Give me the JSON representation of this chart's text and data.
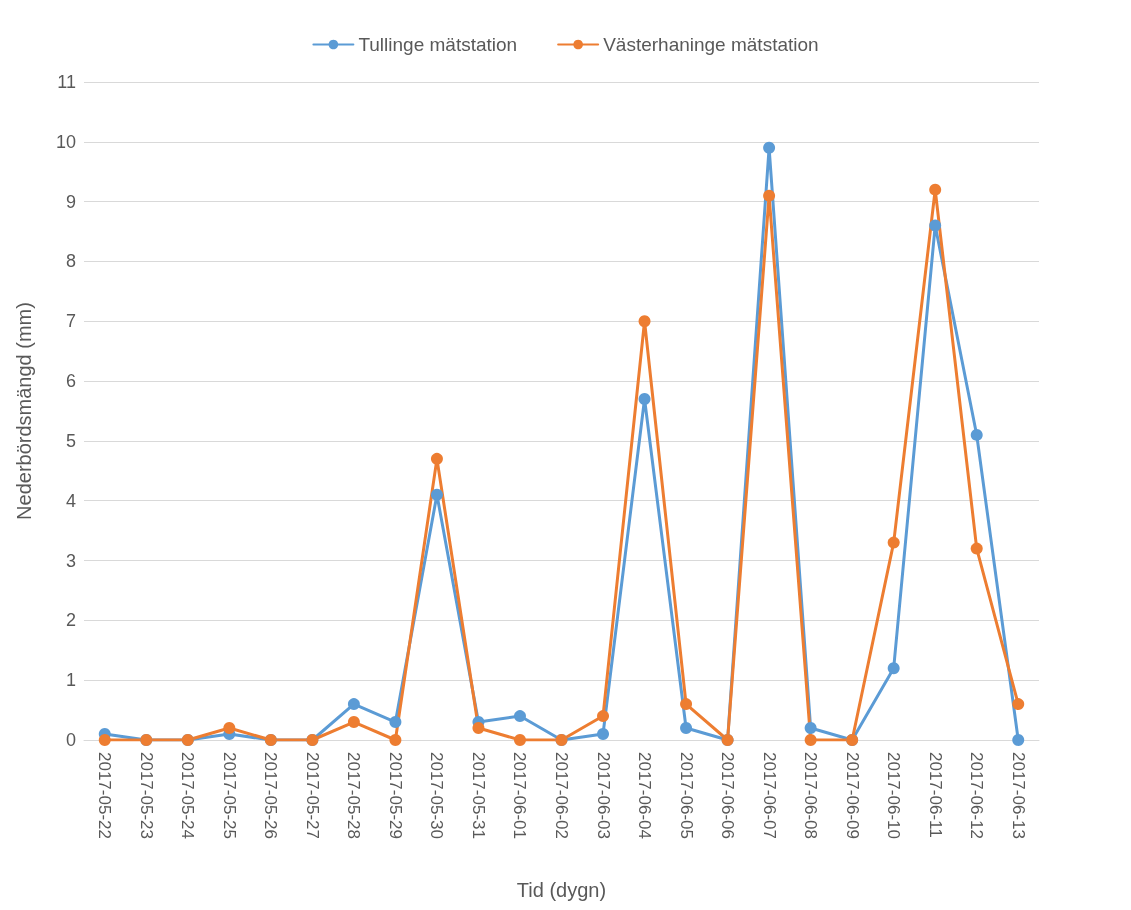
{
  "chart_data": {
    "type": "line",
    "xlabel": "Tid (dygn)",
    "ylabel": "Nederbördsmängd (mm)",
    "categories": [
      "2017-05-22",
      "2017-05-23",
      "2017-05-24",
      "2017-05-25",
      "2017-05-26",
      "2017-05-27",
      "2017-05-28",
      "2017-05-29",
      "2017-05-30",
      "2017-05-31",
      "2017-06-01",
      "2017-06-02",
      "2017-06-03",
      "2017-06-04",
      "2017-06-05",
      "2017-06-06",
      "2017-06-07",
      "2017-06-08",
      "2017-06-09",
      "2017-06-10",
      "2017-06-11",
      "2017-06-12",
      "2017-06-13"
    ],
    "series": [
      {
        "name": "Tullinge mätstation",
        "color": "#5b9bd5",
        "values": [
          0.1,
          0,
          0,
          0.1,
          0,
          0,
          0.6,
          0.3,
          4.1,
          0.3,
          0.4,
          0,
          0.1,
          5.7,
          0.2,
          0,
          9.9,
          0.2,
          0,
          1.2,
          8.6,
          5.1,
          0
        ]
      },
      {
        "name": "Västerhaninge mätstation",
        "color": "#ed7d31",
        "values": [
          0,
          0,
          0,
          0.2,
          0,
          0,
          0.3,
          0,
          4.7,
          0.2,
          0,
          0,
          0.4,
          7.0,
          0.6,
          0,
          9.1,
          0,
          0,
          3.3,
          9.2,
          3.2,
          0.6
        ]
      }
    ],
    "ylim": [
      0,
      11
    ],
    "yticks": [
      0,
      1,
      2,
      3,
      4,
      5,
      6,
      7,
      8,
      9,
      10,
      11
    ],
    "grid": "y",
    "legend": "top",
    "marker": "circle",
    "line_style": "solid"
  }
}
